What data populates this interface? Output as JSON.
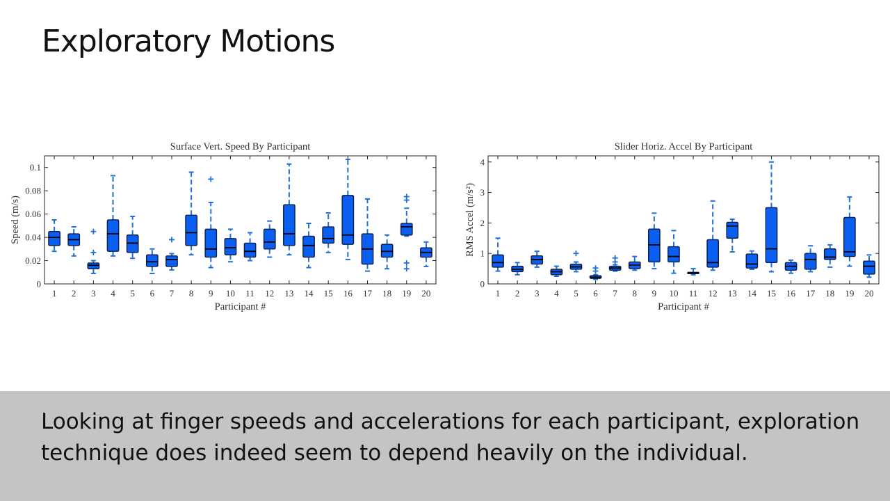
{
  "slide": {
    "title": "Exploratory Motions",
    "caption": "Looking at finger speeds and accelerations for each participant, exploration technique does indeed seem to depend heavily on the individual."
  },
  "colors": {
    "box_fill": "#0a5ef0",
    "whisker": "#1f6fd6",
    "outlier": "#1f6fd6",
    "median": "#000000"
  },
  "chart_data": [
    {
      "type": "boxplot",
      "title": "Surface Vert. Speed By Participant",
      "xlabel": "Participant #",
      "ylabel": "Speed (m/s)",
      "ylim": [
        0,
        0.11
      ],
      "yticks": [
        0,
        0.02,
        0.04,
        0.06,
        0.08,
        0.1
      ],
      "ytick_labels": [
        "0",
        "0.02",
        "0.04",
        "0.06",
        "0.08",
        "0.1"
      ],
      "categories": [
        "1",
        "2",
        "3",
        "4",
        "5",
        "6",
        "7",
        "8",
        "9",
        "10",
        "11",
        "12",
        "13",
        "14",
        "15",
        "16",
        "17",
        "18",
        "19",
        "20"
      ],
      "boxes": [
        {
          "whisker_low": 0.028,
          "q1": 0.033,
          "median": 0.04,
          "q3": 0.045,
          "whisker_high": 0.055,
          "outliers": []
        },
        {
          "whisker_low": 0.024,
          "q1": 0.033,
          "median": 0.038,
          "q3": 0.043,
          "whisker_high": 0.049,
          "outliers": []
        },
        {
          "whisker_low": 0.009,
          "q1": 0.013,
          "median": 0.016,
          "q3": 0.018,
          "whisker_high": 0.02,
          "outliers": [
            0.027,
            0.045
          ]
        },
        {
          "whisker_low": 0.024,
          "q1": 0.028,
          "median": 0.043,
          "q3": 0.055,
          "whisker_high": 0.093,
          "outliers": []
        },
        {
          "whisker_low": 0.022,
          "q1": 0.027,
          "median": 0.035,
          "q3": 0.042,
          "whisker_high": 0.058,
          "outliers": []
        },
        {
          "whisker_low": 0.009,
          "q1": 0.015,
          "median": 0.019,
          "q3": 0.025,
          "whisker_high": 0.03,
          "outliers": []
        },
        {
          "whisker_low": 0.012,
          "q1": 0.015,
          "median": 0.021,
          "q3": 0.024,
          "whisker_high": 0.026,
          "outliers": [
            0.038
          ]
        },
        {
          "whisker_low": 0.025,
          "q1": 0.033,
          "median": 0.044,
          "q3": 0.059,
          "whisker_high": 0.096,
          "outliers": []
        },
        {
          "whisker_low": 0.014,
          "q1": 0.023,
          "median": 0.03,
          "q3": 0.047,
          "whisker_high": 0.07,
          "outliers": [
            0.09
          ]
        },
        {
          "whisker_low": 0.019,
          "q1": 0.025,
          "median": 0.031,
          "q3": 0.039,
          "whisker_high": 0.047,
          "outliers": []
        },
        {
          "whisker_low": 0.02,
          "q1": 0.023,
          "median": 0.028,
          "q3": 0.035,
          "whisker_high": 0.044,
          "outliers": []
        },
        {
          "whisker_low": 0.023,
          "q1": 0.03,
          "median": 0.036,
          "q3": 0.047,
          "whisker_high": 0.054,
          "outliers": []
        },
        {
          "whisker_low": 0.025,
          "q1": 0.033,
          "median": 0.043,
          "q3": 0.068,
          "whisker_high": 0.103,
          "outliers": []
        },
        {
          "whisker_low": 0.014,
          "q1": 0.023,
          "median": 0.033,
          "q3": 0.041,
          "whisker_high": 0.052,
          "outliers": []
        },
        {
          "whisker_low": 0.027,
          "q1": 0.035,
          "median": 0.039,
          "q3": 0.049,
          "whisker_high": 0.061,
          "outliers": []
        },
        {
          "whisker_low": 0.021,
          "q1": 0.034,
          "median": 0.042,
          "q3": 0.076,
          "whisker_high": 0.107,
          "outliers": []
        },
        {
          "whisker_low": 0.011,
          "q1": 0.017,
          "median": 0.03,
          "q3": 0.043,
          "whisker_high": 0.073,
          "outliers": []
        },
        {
          "whisker_low": 0.013,
          "q1": 0.023,
          "median": 0.028,
          "q3": 0.034,
          "whisker_high": 0.042,
          "outliers": []
        },
        {
          "whisker_low": 0.041,
          "q1": 0.042,
          "median": 0.049,
          "q3": 0.052,
          "whisker_high": 0.065,
          "outliers": [
            0.072,
            0.075,
            0.013,
            0.018
          ]
        },
        {
          "whisker_low": 0.015,
          "q1": 0.023,
          "median": 0.027,
          "q3": 0.031,
          "whisker_high": 0.036,
          "outliers": []
        }
      ]
    },
    {
      "type": "boxplot",
      "title": "Slider Horiz. Accel By Participant",
      "xlabel": "Participant #",
      "ylabel": "RMS Accel (m/s²)",
      "ylim": [
        0,
        4.2
      ],
      "yticks": [
        0,
        1,
        2,
        3,
        4
      ],
      "ytick_labels": [
        "0",
        "1",
        "2",
        "3",
        "4"
      ],
      "categories": [
        "1",
        "2",
        "3",
        "4",
        "5",
        "6",
        "7",
        "8",
        "9",
        "10",
        "11",
        "12",
        "13",
        "14",
        "15",
        "16",
        "17",
        "18",
        "19",
        "20"
      ],
      "boxes": [
        {
          "whisker_low": 0.42,
          "q1": 0.55,
          "median": 0.7,
          "q3": 0.95,
          "whisker_high": 1.5,
          "outliers": []
        },
        {
          "whisker_low": 0.3,
          "q1": 0.4,
          "median": 0.48,
          "q3": 0.58,
          "whisker_high": 0.7,
          "outliers": []
        },
        {
          "whisker_low": 0.55,
          "q1": 0.65,
          "median": 0.8,
          "q3": 0.92,
          "whisker_high": 1.07,
          "outliers": []
        },
        {
          "whisker_low": 0.25,
          "q1": 0.3,
          "median": 0.4,
          "q3": 0.48,
          "whisker_high": 0.58,
          "outliers": []
        },
        {
          "whisker_low": 0.4,
          "q1": 0.48,
          "median": 0.56,
          "q3": 0.65,
          "whisker_high": 0.72,
          "outliers": [
            1.0
          ]
        },
        {
          "whisker_low": 0.15,
          "q1": 0.18,
          "median": 0.22,
          "q3": 0.27,
          "whisker_high": 0.3,
          "outliers": [
            0.42,
            0.52
          ]
        },
        {
          "whisker_low": 0.42,
          "q1": 0.45,
          "median": 0.52,
          "q3": 0.58,
          "whisker_high": 0.63,
          "outliers": [
            0.72,
            0.85
          ]
        },
        {
          "whisker_low": 0.45,
          "q1": 0.5,
          "median": 0.62,
          "q3": 0.72,
          "whisker_high": 0.9,
          "outliers": []
        },
        {
          "whisker_low": 0.5,
          "q1": 0.72,
          "median": 1.28,
          "q3": 1.8,
          "whisker_high": 2.32,
          "outliers": []
        },
        {
          "whisker_low": 0.35,
          "q1": 0.72,
          "median": 0.9,
          "q3": 1.22,
          "whisker_high": 1.75,
          "outliers": []
        },
        {
          "whisker_low": 0.3,
          "q1": 0.34,
          "median": 0.36,
          "q3": 0.38,
          "whisker_high": 0.5,
          "outliers": []
        },
        {
          "whisker_low": 0.45,
          "q1": 0.55,
          "median": 0.7,
          "q3": 1.45,
          "whisker_high": 2.72,
          "outliers": []
        },
        {
          "whisker_low": 1.05,
          "q1": 1.5,
          "median": 1.9,
          "q3": 2.02,
          "whisker_high": 2.12,
          "outliers": []
        },
        {
          "whisker_low": 0.48,
          "q1": 0.52,
          "median": 0.65,
          "q3": 0.98,
          "whisker_high": 1.08,
          "outliers": []
        },
        {
          "whisker_low": 0.4,
          "q1": 0.7,
          "median": 1.15,
          "q3": 2.5,
          "whisker_high": 4.0,
          "outliers": []
        },
        {
          "whisker_low": 0.35,
          "q1": 0.45,
          "median": 0.58,
          "q3": 0.7,
          "whisker_high": 0.78,
          "outliers": []
        },
        {
          "whisker_low": 0.4,
          "q1": 0.48,
          "median": 0.8,
          "q3": 1.0,
          "whisker_high": 1.25,
          "outliers": []
        },
        {
          "whisker_low": 0.55,
          "q1": 0.8,
          "median": 0.88,
          "q3": 1.15,
          "whisker_high": 1.28,
          "outliers": []
        },
        {
          "whisker_low": 0.58,
          "q1": 0.9,
          "median": 1.05,
          "q3": 2.18,
          "whisker_high": 2.85,
          "outliers": []
        },
        {
          "whisker_low": 0.22,
          "q1": 0.32,
          "median": 0.58,
          "q3": 0.75,
          "whisker_high": 0.95,
          "outliers": []
        }
      ]
    }
  ]
}
